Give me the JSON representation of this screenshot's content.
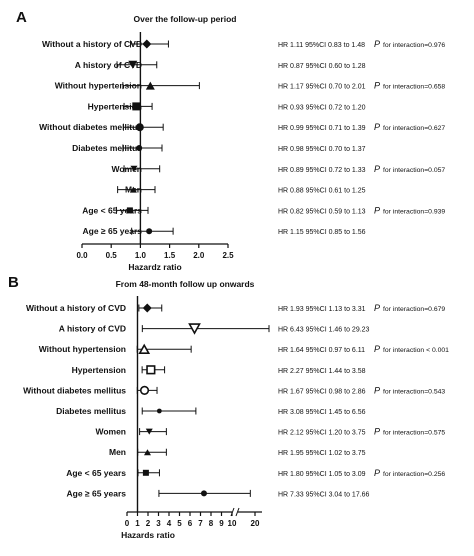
{
  "chart_data": [
    {
      "type": "forest",
      "panel_label": "A",
      "title": "Over the follow-up period",
      "xlabel": "Hazardz ratio",
      "xlim": [
        0,
        2.5
      ],
      "ticks": [
        "0.0",
        "0.5",
        "1.0",
        "1.5",
        "2.0",
        "2.5"
      ],
      "tick_values": [
        0,
        0.5,
        1.0,
        1.5,
        2.0,
        2.5
      ],
      "reference_line": 1.0,
      "rows": [
        {
          "label": "Without a history of CVD",
          "hr": 1.11,
          "lo": 0.83,
          "hi": 1.48,
          "marker": "diamond",
          "stat": "HR 1.11 95%CI 0.83 to 1.48",
          "p_text": "for interaction=0.976"
        },
        {
          "label": "A history of CVD",
          "hr": 0.87,
          "lo": 0.6,
          "hi": 1.28,
          "marker": "triangle-down",
          "stat": "HR 0.87 95%CI 0.60 to 1.28",
          "p_text": ""
        },
        {
          "label": "Without hypertension",
          "hr": 1.17,
          "lo": 0.7,
          "hi": 2.01,
          "marker": "triangle",
          "stat": "HR 1.17 95%CI 0.70 to 2.01",
          "p_text": "for interaction=0.658"
        },
        {
          "label": "Hypertension",
          "hr": 0.93,
          "lo": 0.72,
          "hi": 1.2,
          "marker": "square",
          "stat": "HR 0.93 95%CI 0.72 to 1.20",
          "p_text": ""
        },
        {
          "label": "Without diabetes mellitus",
          "hr": 0.99,
          "lo": 0.71,
          "hi": 1.39,
          "marker": "circle",
          "stat": "HR 0.99 95%CI 0.71 to 1.39",
          "p_text": "for interaction=0.627"
        },
        {
          "label": "Diabetes mellitus",
          "hr": 0.98,
          "lo": 0.7,
          "hi": 1.37,
          "marker": "dot",
          "stat": "HR 0.98 95%CI 0.70 to 1.37",
          "p_text": ""
        },
        {
          "label": "Women",
          "hr": 0.89,
          "lo": 0.72,
          "hi": 1.33,
          "marker": "triangle-down-small",
          "stat": "HR 0.89 95%CI 0.72 to 1.33",
          "p_text": "for interaction=0.057"
        },
        {
          "label": "Men",
          "hr": 0.88,
          "lo": 0.61,
          "hi": 1.25,
          "marker": "triangle-small",
          "stat": "HR 0.88 95%CI 0.61 to 1.25",
          "p_text": ""
        },
        {
          "label": "Age < 65 years",
          "hr": 0.82,
          "lo": 0.59,
          "hi": 1.13,
          "marker": "square-small",
          "stat": "HR 0.82 95%CI 0.59 to 1.13",
          "p_text": "for interaction=0.939"
        },
        {
          "label": "Age ≥ 65 years",
          "hr": 1.15,
          "lo": 0.85,
          "hi": 1.56,
          "marker": "dot",
          "stat": "HR 1.15 95%CI 0.85 to 1.56",
          "p_text": ""
        }
      ]
    },
    {
      "type": "forest",
      "panel_label": "B",
      "title": "From 48-month follow up onwards",
      "xlabel": "Hazards ratio",
      "xlim": [
        0,
        20
      ],
      "axis_break": [
        10,
        17
      ],
      "ticks": [
        "0",
        "1",
        "2",
        "3",
        "4",
        "5",
        "6",
        "7",
        "8",
        "9",
        "10",
        "20"
      ],
      "tick_values": [
        0,
        1,
        2,
        3,
        4,
        5,
        6,
        7,
        8,
        9,
        10,
        20
      ],
      "reference_line": 1,
      "rows": [
        {
          "label": "Without a history of CVD",
          "hr": 1.93,
          "lo": 1.13,
          "hi": 3.31,
          "marker": "diamond",
          "stat": "HR 1.93 95%CI 1.13 to 3.31",
          "p_text": "for interaction=0.679"
        },
        {
          "label": "A history of CVD",
          "hr": 6.43,
          "lo": 1.46,
          "hi": 29.23,
          "marker": "triangle-down-open",
          "stat": "HR 6.43 95%CI 1.46 to 29.23",
          "p_text": ""
        },
        {
          "label": "Without hypertension",
          "hr": 1.64,
          "lo": 0.97,
          "hi": 6.11,
          "marker": "triangle-open",
          "stat": "HR 1.64 95%CI 0.97 to 6.11",
          "p_text": "for interaction < 0.001"
        },
        {
          "label": "Hypertension",
          "hr": 2.27,
          "lo": 1.44,
          "hi": 3.58,
          "marker": "square-open",
          "stat": "HR 2.27 95%CI 1.44 to 3.58",
          "p_text": ""
        },
        {
          "label": "Without diabetes mellitus",
          "hr": 1.67,
          "lo": 0.98,
          "hi": 2.86,
          "marker": "circle-open",
          "stat": "HR 1.67 95%CI 0.98 to 2.86",
          "p_text": "for interaction=0.543"
        },
        {
          "label": "Diabetes mellitus",
          "hr": 3.08,
          "lo": 1.45,
          "hi": 6.56,
          "marker": "dot-small",
          "stat": "HR 3.08 95%CI 1.45 to 6.56",
          "p_text": ""
        },
        {
          "label": "Women",
          "hr": 2.12,
          "lo": 1.2,
          "hi": 3.75,
          "marker": "triangle-down-small",
          "stat": "HR 2.12 95%CI 1.20 to 3.75",
          "p_text": "for interaction=0.575"
        },
        {
          "label": "Men",
          "hr": 1.95,
          "lo": 1.02,
          "hi": 3.75,
          "marker": "triangle-small",
          "stat": "HR 1.95 95%CI 1.02 to 3.75",
          "p_text": ""
        },
        {
          "label": "Age < 65 years",
          "hr": 1.8,
          "lo": 1.05,
          "hi": 3.09,
          "marker": "square-small",
          "stat": "HR 1.80 95%CI 1.05 to 3.09",
          "p_text": "for interaction=0.256"
        },
        {
          "label": "Age ≥ 65 years",
          "hr": 7.33,
          "lo": 3.04,
          "hi": 17.66,
          "marker": "dot",
          "stat": "HR 7.33 95%CI 3.04 to 17.66",
          "p_text": ""
        }
      ]
    }
  ],
  "p_symbol": "P",
  "marker_color": "#111111"
}
